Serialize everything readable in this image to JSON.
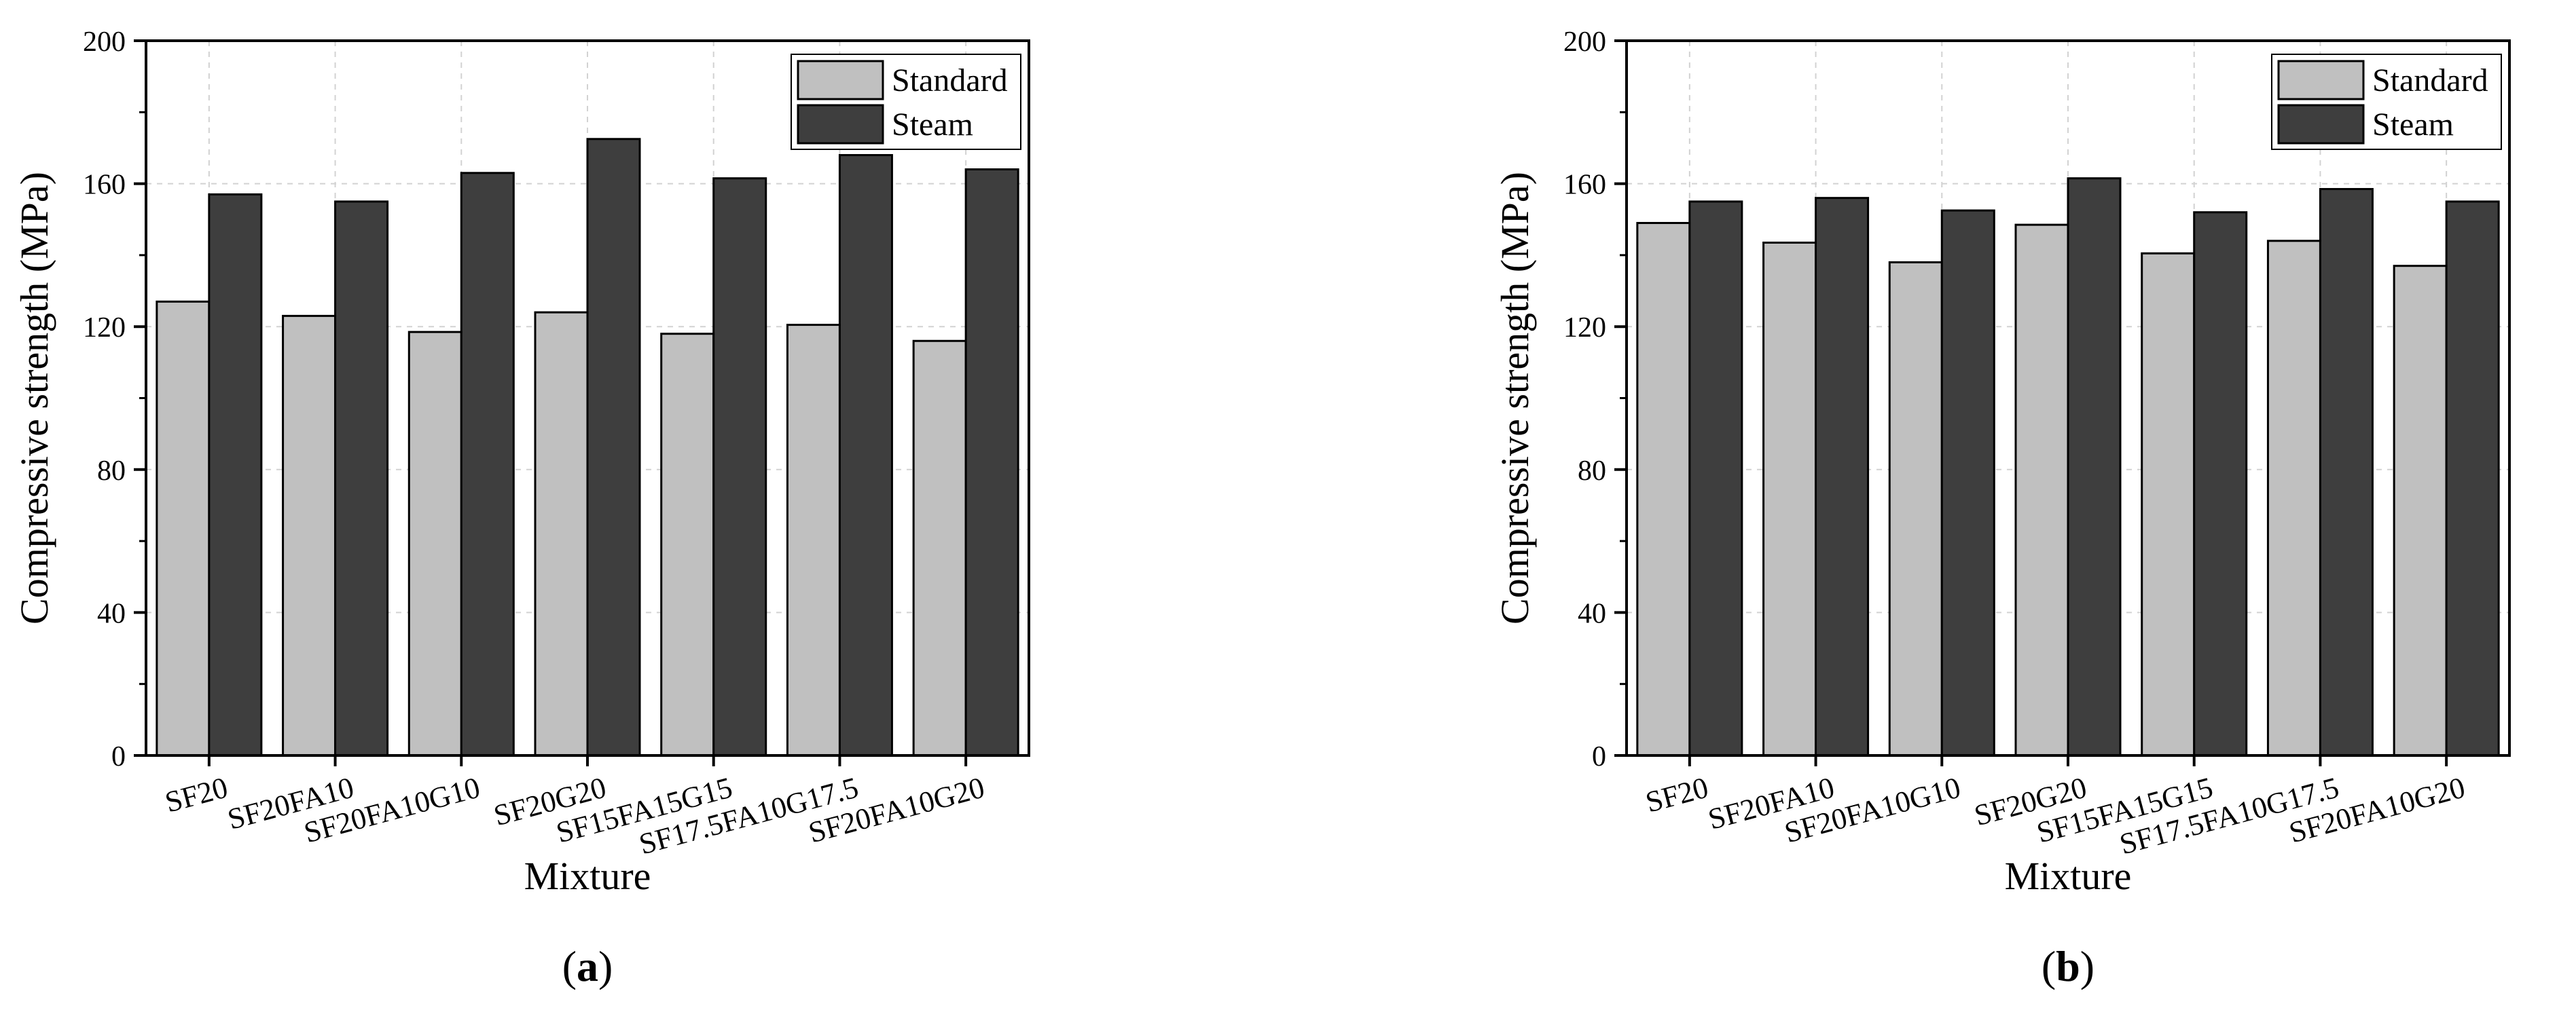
{
  "chart_data": [
    {
      "type": "bar",
      "panel_label": "a",
      "categories": [
        "SF20",
        "SF20FA10",
        "SF20FA10G10",
        "SF20G20",
        "SF15FA15G15",
        "SF17.5FA10G17.5",
        "SF20FA10G20"
      ],
      "series": [
        {
          "name": "Standard",
          "color": "#c0c0c0",
          "values": [
            127,
            123,
            118.5,
            124,
            118,
            120.5,
            116
          ]
        },
        {
          "name": "Steam",
          "color": "#3e3e3e",
          "values": [
            157,
            155,
            163,
            172.5,
            161.5,
            168,
            164
          ]
        }
      ],
      "xlabel": "Mixture",
      "ylabel": "Compressive strength (MPa)",
      "ylim": [
        0,
        200
      ],
      "yticks": [
        "0",
        "40",
        "80",
        "120",
        "160",
        "200"
      ],
      "grid": true,
      "legend_position": "top-right"
    },
    {
      "type": "bar",
      "panel_label": "b",
      "categories": [
        "SF20",
        "SF20FA10",
        "SF20FA10G10",
        "SF20G20",
        "SF15FA15G15",
        "SF17.5FA10G17.5",
        "SF20FA10G20"
      ],
      "series": [
        {
          "name": "Standard",
          "color": "#c0c0c0",
          "values": [
            149,
            143.5,
            138,
            148.5,
            140.5,
            144,
            137
          ]
        },
        {
          "name": "Steam",
          "color": "#3e3e3e",
          "values": [
            155,
            156,
            152.5,
            161.5,
            152,
            158.5,
            155
          ]
        }
      ],
      "xlabel": "Mixture",
      "ylabel": "Compressive strength (MPa)",
      "ylim": [
        0,
        200
      ],
      "yticks": [
        "0",
        "40",
        "80",
        "120",
        "160",
        "200"
      ],
      "grid": true,
      "legend_position": "top-right"
    }
  ]
}
